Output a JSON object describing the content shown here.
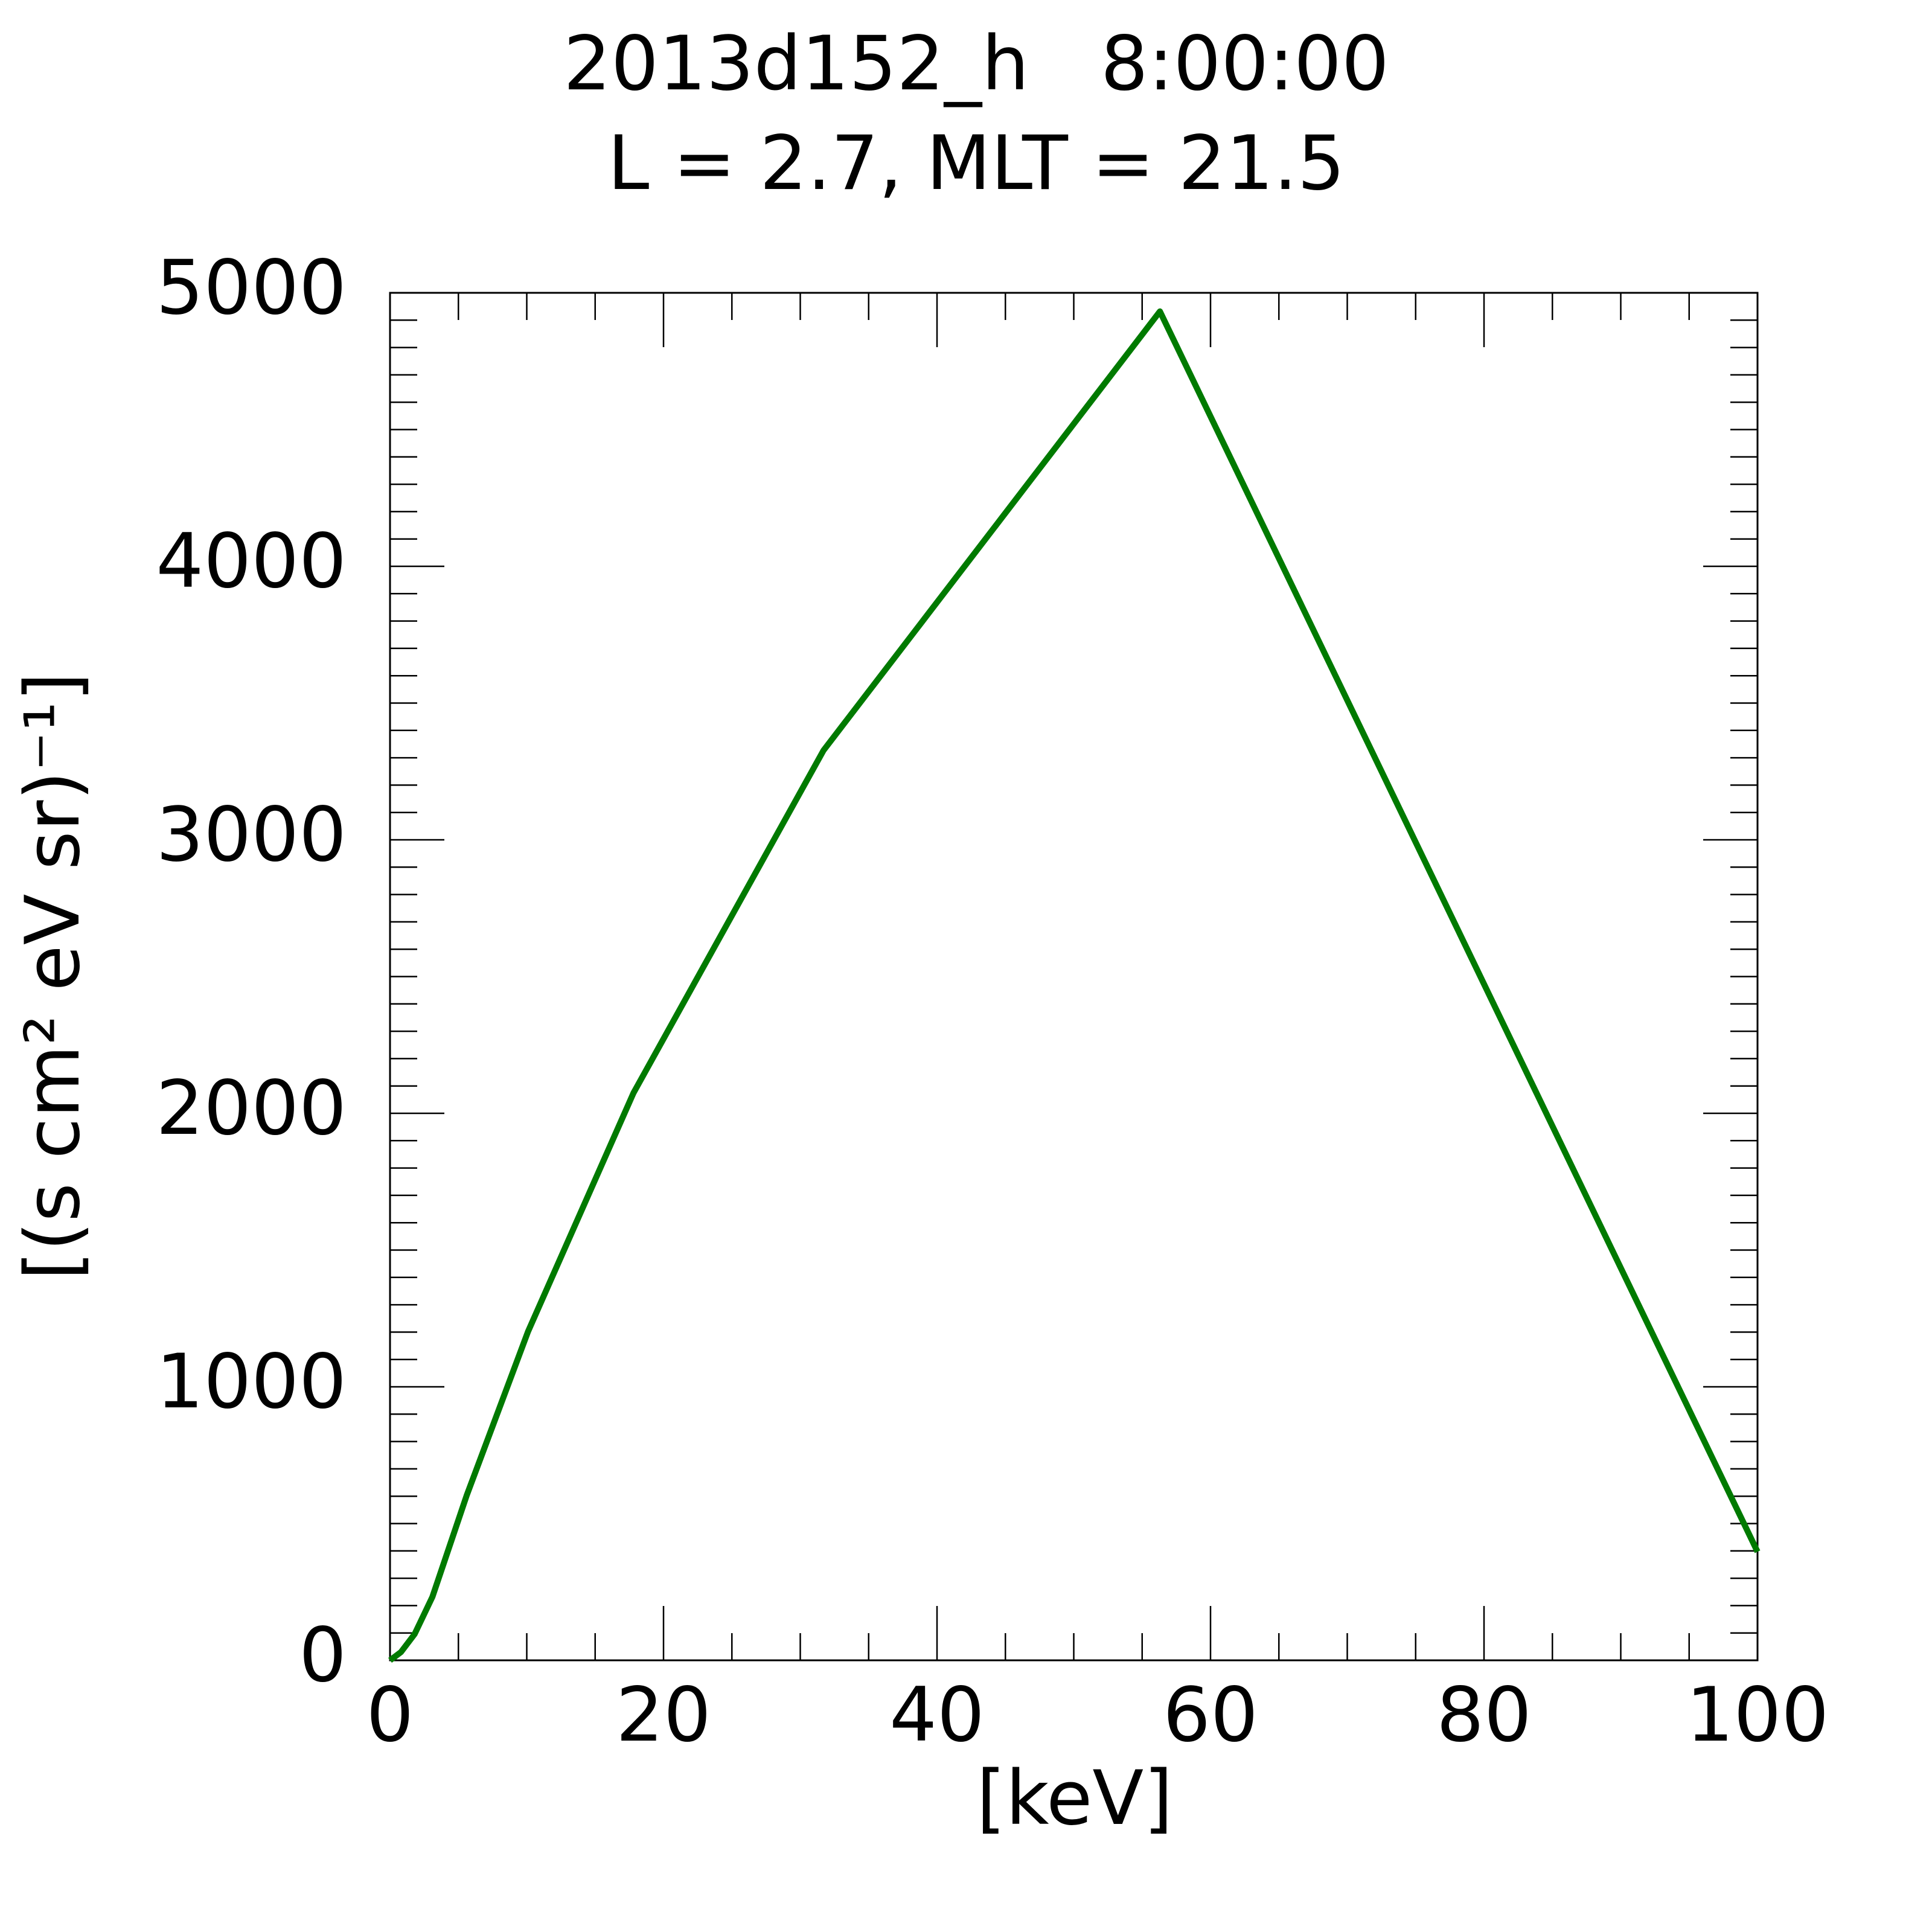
{
  "chart_data": {
    "type": "line",
    "title": "2013d152_h   8:00:00",
    "subtitle": "L = 2.7, MLT = 21.5",
    "xlabel": "[keV]",
    "ylabel": "[(s cm² eV sr)⁻¹]",
    "x": [
      0,
      0.8,
      1.8,
      3.1,
      5.6,
      10.1,
      17.8,
      31.7,
      56.3,
      100
    ],
    "series": [
      {
        "color": "#007a00",
        "values": [
          0,
          30,
          96,
          232,
          602,
          1203,
          2074,
          3327,
          4932,
          397
        ]
      }
    ],
    "xlim": [
      0,
      100
    ],
    "xticks": [
      0,
      20,
      40,
      60,
      80,
      100
    ],
    "ylim": [
      0,
      5000
    ],
    "yticks": [
      0,
      1000,
      2000,
      3000,
      4000,
      5000
    ]
  }
}
